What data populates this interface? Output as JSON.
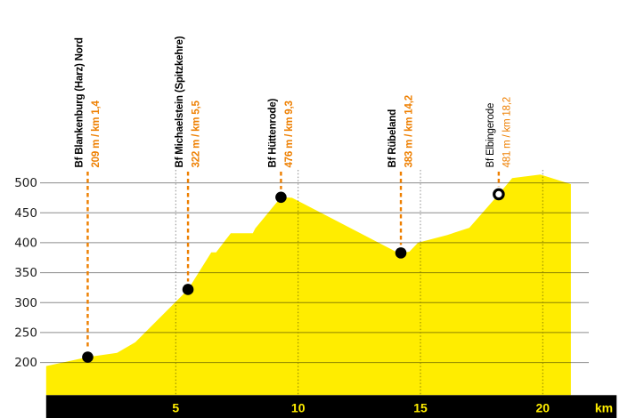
{
  "chart_data": {
    "type": "area",
    "description": "Railway line elevation profile with station markers",
    "xlabel_unit": "km",
    "ylabel_unit": "m",
    "x_ticks": [
      5,
      10,
      15,
      20
    ],
    "x_axis_unit_label": "km",
    "y_ticks": [
      500,
      450,
      400,
      350,
      300,
      250,
      200
    ],
    "x_range": [
      -0.3,
      23.0
    ],
    "y_range": [
      200,
      514
    ],
    "grid": true,
    "profile": [
      {
        "km": -0.3,
        "m": 194
      },
      {
        "km": 1.4,
        "m": 209,
        "station": "blankenburg"
      },
      {
        "km": 2.6,
        "m": 216
      },
      {
        "km": 3.35,
        "m": 234
      },
      {
        "km": 5.5,
        "m": 322,
        "station": "michaelstein"
      },
      {
        "km": 6.45,
        "m": 384
      },
      {
        "km": 6.65,
        "m": 384
      },
      {
        "km": 7.25,
        "m": 416
      },
      {
        "km": 8.15,
        "m": 416
      },
      {
        "km": 8.25,
        "m": 424
      },
      {
        "km": 9.3,
        "m": 476,
        "station": "huettenrode"
      },
      {
        "km": 9.75,
        "m": 475
      },
      {
        "km": 14.05,
        "m": 384
      },
      {
        "km": 14.2,
        "m": 383,
        "station": "ruebeland"
      },
      {
        "km": 14.55,
        "m": 385
      },
      {
        "km": 14.9,
        "m": 400
      },
      {
        "km": 16.1,
        "m": 413
      },
      {
        "km": 17.0,
        "m": 425
      },
      {
        "km": 18.2,
        "m": 481,
        "station": "elbingerode"
      },
      {
        "km": 18.75,
        "m": 508
      },
      {
        "km": 19.9,
        "m": 514
      },
      {
        "km": 21.15,
        "m": 498
      }
    ],
    "stations": [
      {
        "id": "blankenburg",
        "name": "Bf Blankenburg (Harz) Nord",
        "info": "209 m / km 1,4",
        "km": 1.4,
        "elevation_m": 209,
        "marker": "filled",
        "weight": "bold"
      },
      {
        "id": "michaelstein",
        "name": "Bf Michaelstein (Spitzkehre)",
        "info": "322 m / km 5,5",
        "km": 5.5,
        "elevation_m": 322,
        "marker": "filled",
        "weight": "bold"
      },
      {
        "id": "huettenrode",
        "name": "Bf Hüttenrode)",
        "info": "476 m / km 9,3",
        "km": 9.3,
        "elevation_m": 476,
        "marker": "filled",
        "weight": "bold"
      },
      {
        "id": "ruebeland",
        "name": "Bf Rübeland",
        "info": "383 m / km 14,2",
        "km": 14.2,
        "elevation_m": 383,
        "marker": "filled",
        "weight": "bold"
      },
      {
        "id": "elbingerode",
        "name": "Bf Elbingerode",
        "info": "481 m / km 18,2",
        "km": 18.2,
        "elevation_m": 481,
        "marker": "open",
        "weight": "regular"
      }
    ],
    "colors": {
      "area": "#FFED00",
      "accent": "#EE7F00",
      "grid": "#8C8C8C",
      "axis_bar": "#000000",
      "axis_bar_text": "#FFED00",
      "marker": "#000000",
      "tick_text": "#1A1A1A",
      "station_text": "#000000",
      "background": "#FFFFFF"
    }
  }
}
